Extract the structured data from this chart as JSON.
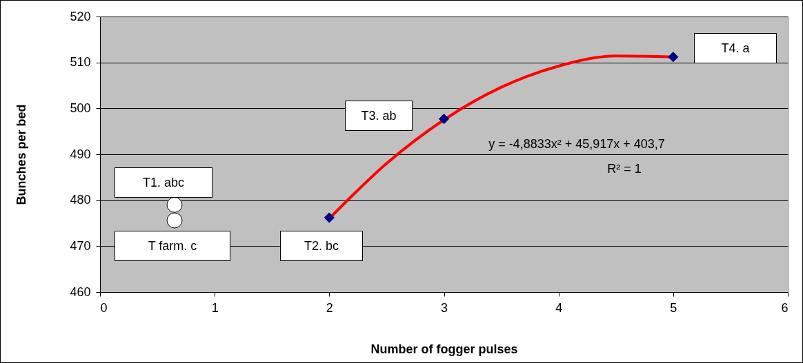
{
  "chart_data": {
    "type": "scatter",
    "xlabel": "Number of fogger pulses",
    "ylabel": "Bunches per bed",
    "xlim": [
      0,
      6
    ],
    "xticks": [
      0,
      1,
      2,
      3,
      4,
      5,
      6
    ],
    "ylim": [
      460,
      520
    ],
    "yticks": [
      460,
      470,
      480,
      490,
      500,
      510,
      520
    ],
    "grid": "y",
    "series": [
      {
        "type": "scatter",
        "marker": "circle",
        "color": "#ffffff",
        "x": [
          0.65,
          0.65
        ],
        "values": [
          479,
          475.6
        ]
      },
      {
        "type": "line",
        "marker": "none",
        "color": "#ff0000",
        "x": [
          2,
          2.5,
          3,
          3.5,
          4,
          4.5,
          5
        ],
        "values": [
          476,
          488,
          497.5,
          504.6,
          509.2,
          511.4,
          511.2
        ]
      },
      {
        "type": "scatter",
        "marker": "diamond",
        "color": "#000080",
        "x": [
          2,
          3,
          5
        ],
        "values": [
          476.2,
          497.7,
          511.2
        ]
      }
    ],
    "annotations": [
      "T1. abc",
      "T farm. c",
      "T2. bc",
      "T3. ab",
      "T4. a",
      "y = -4,8833x² + 45,917x + 403,7",
      "R² = 1"
    ]
  }
}
